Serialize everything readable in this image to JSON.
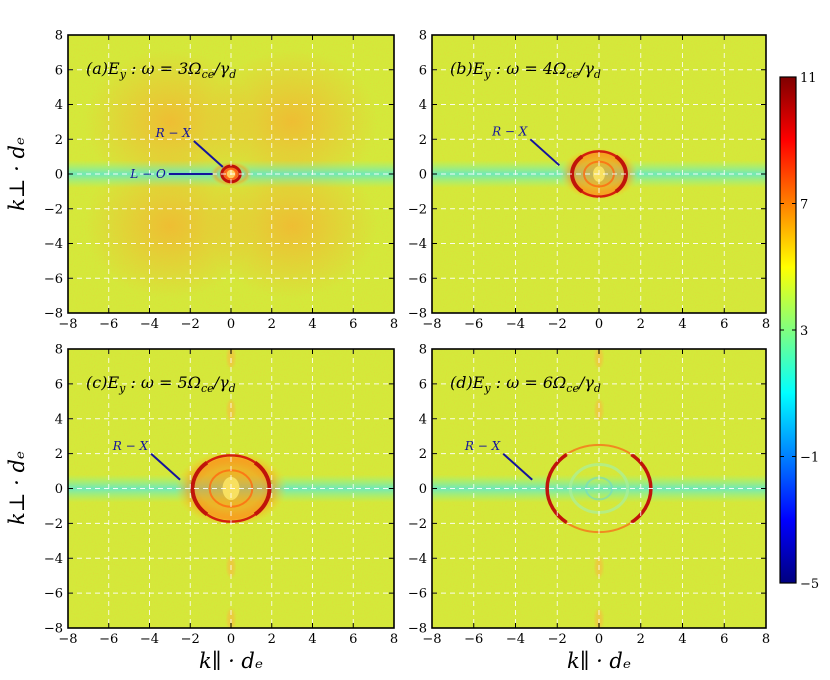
{
  "chart_data": {
    "type": "heatmap",
    "xlabel": "k∥ · dₑ",
    "ylabel": "k⊥ · dₑ",
    "xlim": [
      -8,
      8
    ],
    "ylim": [
      -8,
      8
    ],
    "ticks": [
      -8,
      -6,
      -4,
      -2,
      0,
      2,
      4,
      6,
      8
    ],
    "tick_labels": [
      "−8",
      "−6",
      "−4",
      "−2",
      "0",
      "2",
      "4",
      "6",
      "8"
    ],
    "grid": true,
    "colorbar": {
      "min": -5,
      "max": 11,
      "ticks": [
        11,
        7,
        3,
        -1,
        -5
      ],
      "tick_labels": [
        "11",
        "7",
        "3",
        "−1",
        "−5"
      ],
      "colormap": "jet"
    },
    "colors": {
      "background_field": "#d4e93a",
      "wave_label": "#14149c",
      "ring": "#c0140a"
    },
    "panels": [
      {
        "title": "(a)E_y : ω = 3Ω_ce/γ_d",
        "title_parts": [
          "(a)",
          "E",
          "y",
          " : ω = 3Ω",
          "ce",
          "/γ",
          "d"
        ],
        "ring_radius": 0.45,
        "ring_intensity": 11,
        "wave_labels": [
          {
            "text": "R − X",
            "k_par": -0.4,
            "k_perp": 0.4
          },
          {
            "text": "L − O",
            "k_par": -0.25,
            "k_perp": 0
          }
        ]
      },
      {
        "title": "(b)E_y : ω = 4Ω_ce/γ_d",
        "title_parts": [
          "(b)",
          "E",
          "y",
          " : ω = 4Ω",
          "ce",
          "/γ",
          "d"
        ],
        "ring_radius": 1.3,
        "ring_intensity": 10,
        "wave_labels": [
          {
            "text": "R − X",
            "k_par": -1.9,
            "k_perp": 0.5
          }
        ]
      },
      {
        "title": "(c)E_y : ω = 5Ω_ce/γ_d",
        "title_parts": [
          "(c)",
          "E",
          "y",
          " : ω = 5Ω",
          "ce",
          "/γ",
          "d"
        ],
        "ring_radius": 1.9,
        "ring_intensity": 10,
        "wave_labels": [
          {
            "text": "R − X",
            "k_par": -2.5,
            "k_perp": 0.5
          }
        ]
      },
      {
        "title": "(d)E_y : ω = 6Ω_ce/γ_d",
        "title_parts": [
          "(d)",
          "E",
          "y",
          " : ω = 6Ω",
          "ce",
          "/γ",
          "d"
        ],
        "ring_radius": 2.5,
        "ring_intensity": 9,
        "wave_labels": [
          {
            "text": "R − X",
            "k_par": -3.2,
            "k_perp": 0.5
          }
        ]
      }
    ]
  }
}
